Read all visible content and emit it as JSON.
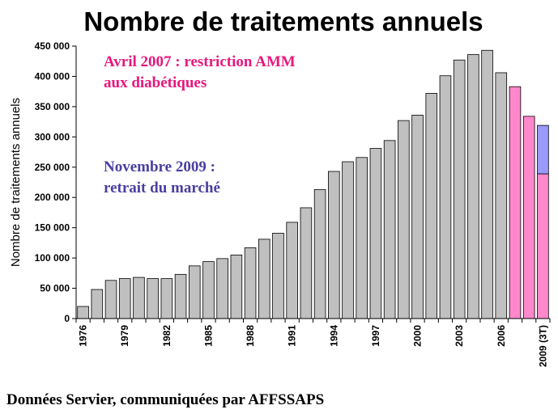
{
  "chart_data": {
    "type": "bar",
    "title": "Nombre de traitements annuels",
    "ylabel": "Nombre de traitements annuels",
    "xlabel": "",
    "ylim": [
      0,
      450000
    ],
    "y_ticks": [
      "0",
      "50 000",
      "100 000",
      "150 000",
      "200 000",
      "250 000",
      "300 000",
      "350 000",
      "400 000",
      "450 000"
    ],
    "categories": [
      "1976",
      "1977",
      "1978",
      "1979",
      "1980",
      "1981",
      "1982",
      "1983",
      "1984",
      "1985",
      "1986",
      "1987",
      "1988",
      "1989",
      "1990",
      "1991",
      "1992",
      "1993",
      "1994",
      "1995",
      "1996",
      "1997",
      "1998",
      "1999",
      "2000",
      "2001",
      "2002",
      "2003",
      "2004",
      "2005",
      "2006",
      "2007",
      "2008",
      "2009 (3T)"
    ],
    "x_tick_labels": [
      "1976",
      "",
      "",
      "1979",
      "",
      "",
      "1982",
      "",
      "",
      "1985",
      "",
      "",
      "1988",
      "",
      "",
      "1991",
      "",
      "",
      "1994",
      "",
      "",
      "1997",
      "",
      "",
      "2000",
      "",
      "",
      "2003",
      "",
      "",
      "2006",
      "",
      "",
      "2009 (3T)"
    ],
    "values": [
      20000,
      48000,
      63000,
      66000,
      68000,
      66000,
      66000,
      73000,
      87000,
      94000,
      99000,
      105000,
      117000,
      131000,
      141000,
      159000,
      183000,
      213000,
      243000,
      259000,
      266000,
      281000,
      294000,
      327000,
      336000,
      372000,
      401000,
      427000,
      436000,
      443000,
      406000,
      383000,
      334000,
      319000
    ],
    "segments_last": [
      239000,
      80000
    ],
    "colors": {
      "gray": "#c0c0c0",
      "pink": "#ff88cc",
      "blue": "#9999ff"
    },
    "grid": false,
    "annotations": [
      {
        "lines": [
          "Avril 2007 : restriction AMM",
          "aux diabétiques"
        ],
        "color": "#e8177d"
      },
      {
        "lines": [
          "Novembre 2009 :",
          "retrait du marché"
        ],
        "color": "#4a3fa0"
      }
    ]
  },
  "source": "Données Servier, communiquées par AFFSSAPS"
}
